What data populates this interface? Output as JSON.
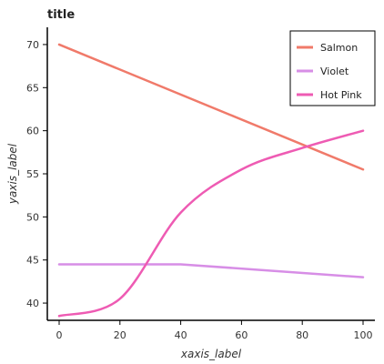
{
  "chart_data": {
    "type": "line",
    "title": "title",
    "xlabel": "xaxis_label",
    "ylabel": "yaxis_label",
    "xlim": [
      0,
      100
    ],
    "ylim": [
      38,
      72
    ],
    "x_ticks": [
      0,
      20,
      40,
      60,
      80,
      100
    ],
    "y_ticks": [
      40,
      45,
      50,
      55,
      60,
      65,
      70
    ],
    "grid": false,
    "legend": "top-right",
    "series": [
      {
        "name": "Salmon",
        "color": "#f07a6a",
        "x": [
          0,
          100
        ],
        "y": [
          70,
          55.5
        ]
      },
      {
        "name": "Violet",
        "color": "#d78ee6",
        "x": [
          0,
          40,
          100
        ],
        "y": [
          44.5,
          44.5,
          43
        ]
      },
      {
        "name": "Hot Pink",
        "color": "#ee5bb3",
        "x": [
          0,
          20,
          40,
          60,
          80,
          100
        ],
        "y": [
          38.5,
          40.5,
          50.5,
          55.5,
          58,
          60
        ]
      }
    ]
  }
}
